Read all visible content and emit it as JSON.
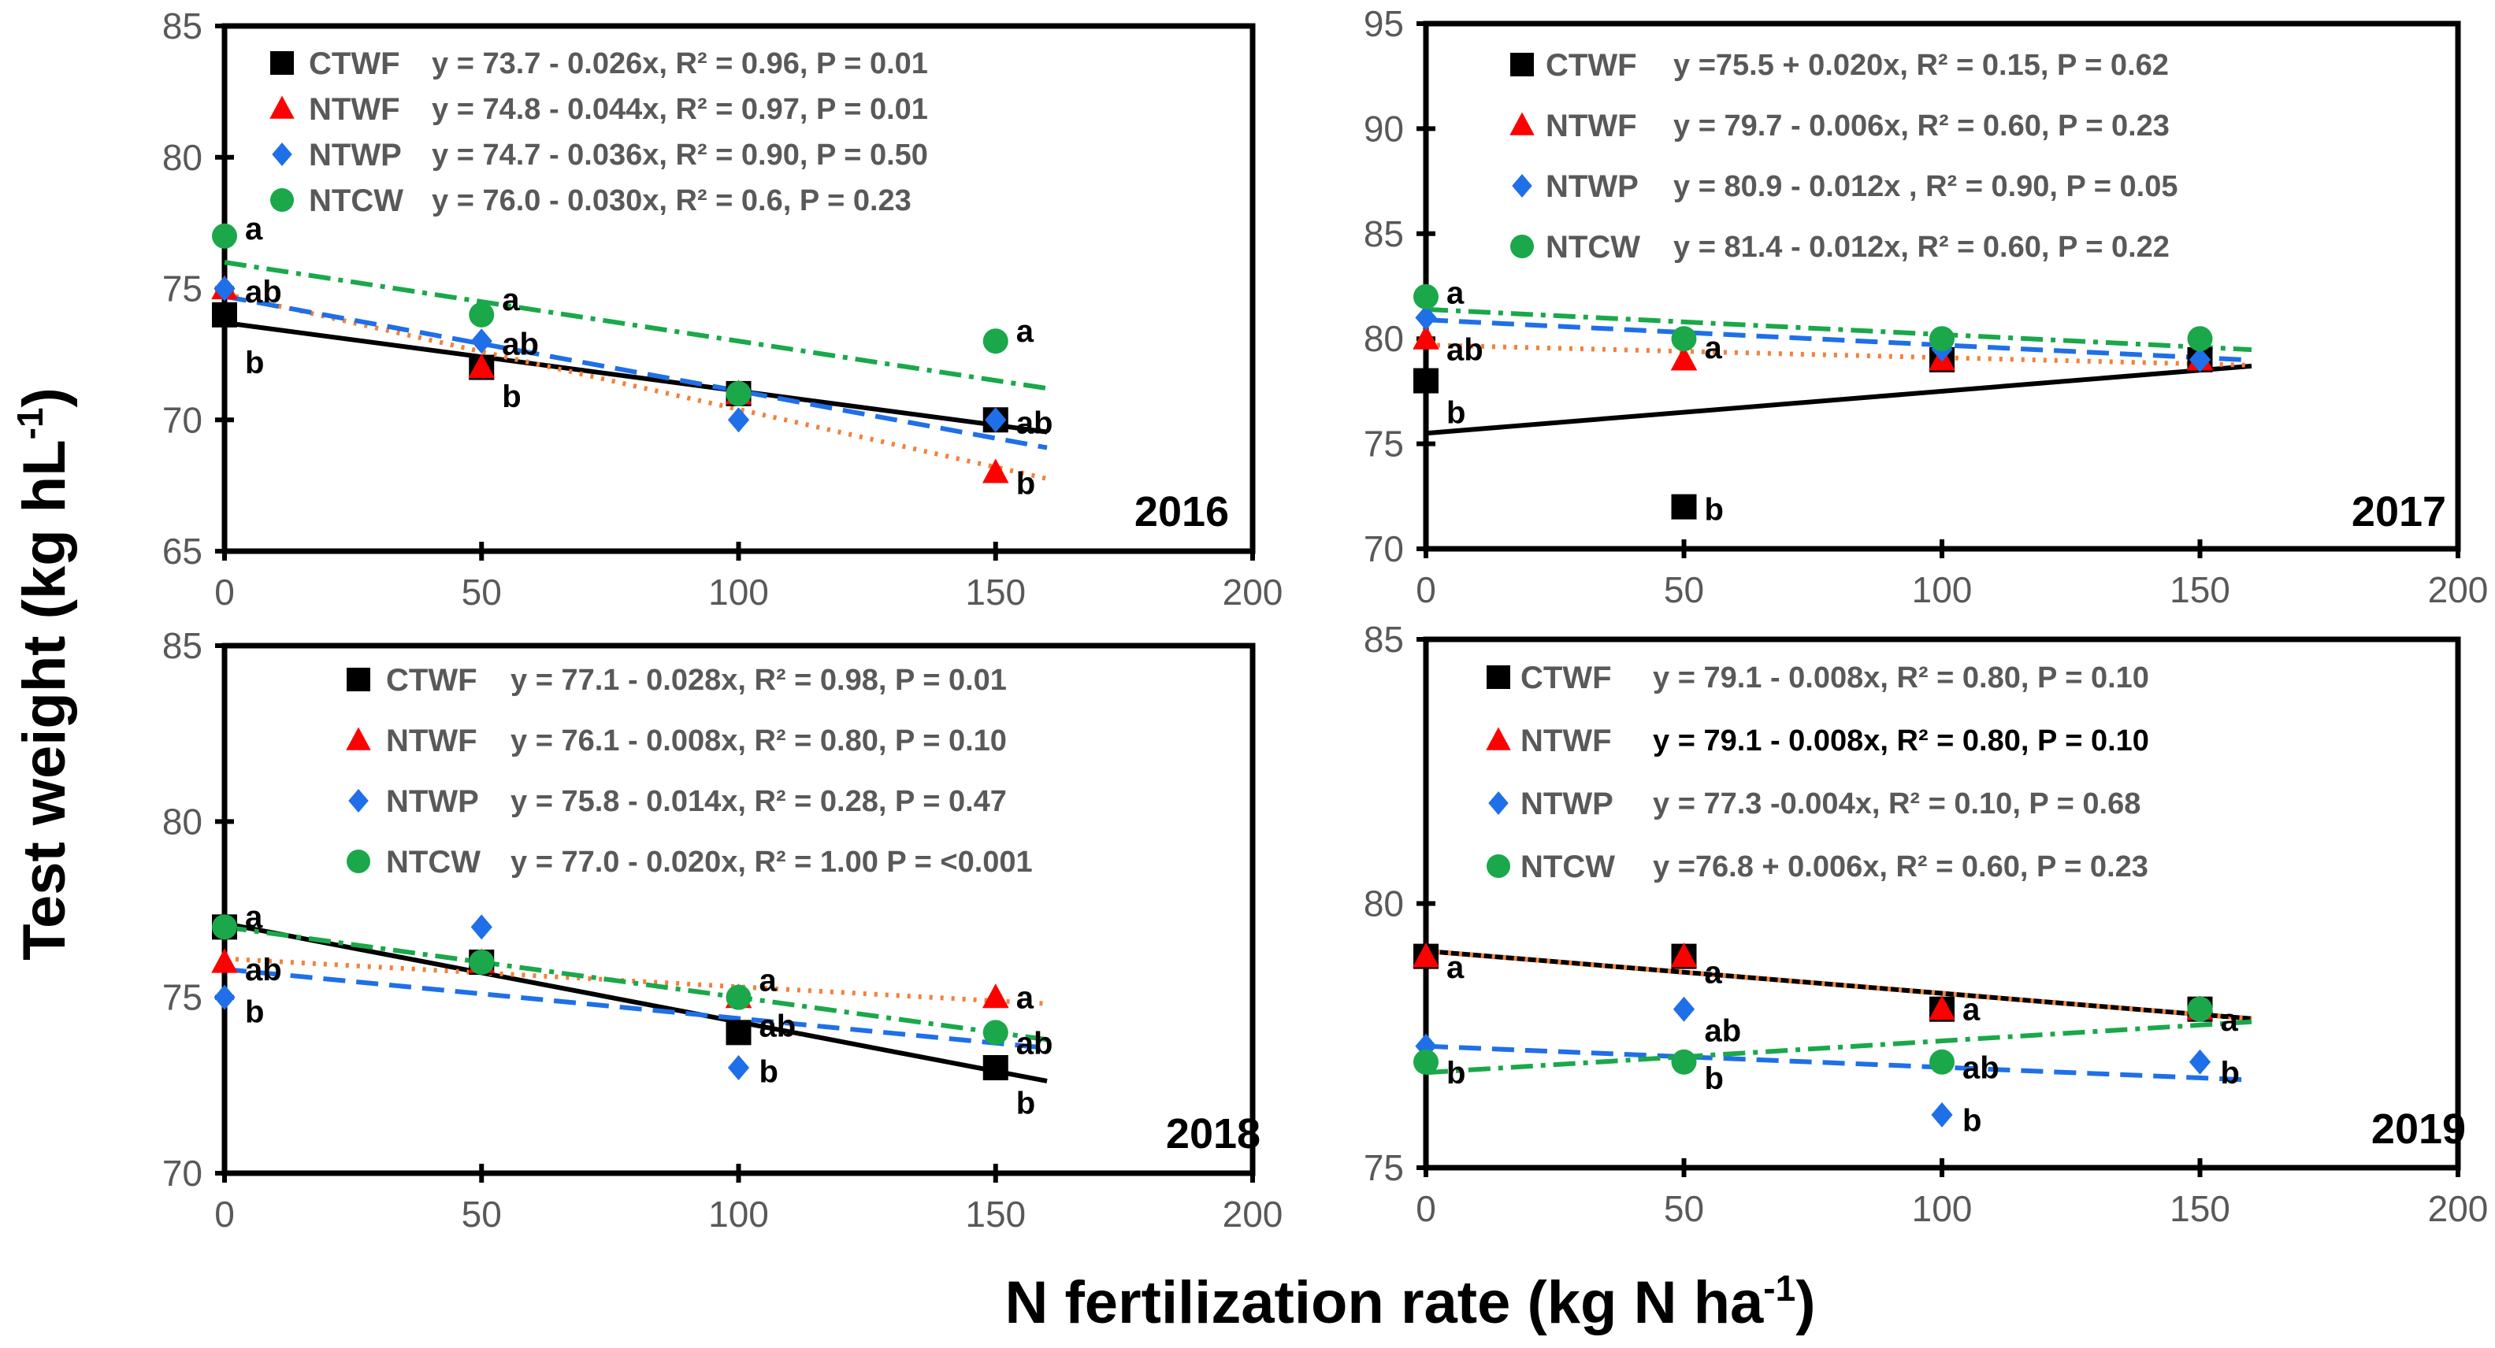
{
  "axis_titles": {
    "ylabel_main": "Test weight (kg hL",
    "ylabel_sup": "-1",
    "ylabel_close": ")",
    "xlabel_main": "N fertilization rate (kg N ha",
    "xlabel_sup": "-1",
    "xlabel_close": ")"
  },
  "colors": {
    "CTWF": "#000000",
    "NTWF": "#ff0000",
    "NTWP": "#1f6fe8",
    "NTCW": "#1aa84a",
    "fit_CTWF": "#000000",
    "fit_NTWF": "#f4803a",
    "fit_NTWP": "#1f6fe8",
    "fit_NTCW": "#1aa84a",
    "tick_text": "#595959"
  },
  "chart_data": [
    {
      "type": "scatter",
      "year": "2016",
      "xlim": [
        0,
        200
      ],
      "ylim": [
        65,
        85
      ],
      "xticks": [
        "0",
        "50",
        "100",
        "150",
        "200"
      ],
      "yticks": [
        "65",
        "70",
        "75",
        "80",
        "85"
      ],
      "x": [
        0,
        50,
        100,
        150
      ],
      "series": [
        {
          "name": "CTWF",
          "marker": "square",
          "values": [
            74,
            72,
            71,
            70
          ],
          "fit": [
            73.7,
            -0.026
          ],
          "equation": "y = 73.7 - 0.026x, R² = 0.96, P = 0.01"
        },
        {
          "name": "NTWF",
          "marker": "triangle",
          "values": [
            75,
            72,
            71,
            68
          ],
          "fit": [
            74.8,
            -0.044
          ],
          "equation": "y = 74.8 - 0.044x, R² = 0.97, P = 0.01"
        },
        {
          "name": "NTWP",
          "marker": "diamond",
          "values": [
            75,
            73,
            70,
            70
          ],
          "fit": [
            74.7,
            -0.036
          ],
          "equation": "y = 74.7 - 0.036x, R² = 0.90, P = 0.50"
        },
        {
          "name": "NTCW",
          "marker": "circle",
          "values": [
            77,
            74,
            71,
            73
          ],
          "fit": [
            76.0,
            -0.03
          ],
          "equation": "y = 76.0 - 0.030x, R² = 0.6, P = 0.23"
        }
      ],
      "annotations": [
        {
          "x": 0,
          "y": 77.3,
          "text": "a"
        },
        {
          "x": 0,
          "y": 74.9,
          "text": "ab"
        },
        {
          "x": 0,
          "y": 72.2,
          "text": "b"
        },
        {
          "x": 50,
          "y": 74.6,
          "text": "a"
        },
        {
          "x": 50,
          "y": 72.9,
          "text": "ab"
        },
        {
          "x": 50,
          "y": 70.9,
          "text": "b"
        },
        {
          "x": 150,
          "y": 73.4,
          "text": "a"
        },
        {
          "x": 150,
          "y": 69.9,
          "text": "ab"
        },
        {
          "x": 150,
          "y": 67.6,
          "text": "b"
        }
      ]
    },
    {
      "type": "scatter",
      "year": "2017",
      "xlim": [
        0,
        200
      ],
      "ylim": [
        70,
        95
      ],
      "xticks": [
        "0",
        "50",
        "100",
        "150",
        "200"
      ],
      "yticks": [
        "70",
        "75",
        "80",
        "85",
        "90",
        "95"
      ],
      "x": [
        0,
        50,
        100,
        150
      ],
      "series": [
        {
          "name": "CTWF",
          "marker": "square",
          "values": [
            78,
            72,
            79,
            79
          ],
          "fit": [
            75.5,
            0.02
          ],
          "equation": "y =75.5 + 0.020x, R² = 0.15, P = 0.62"
        },
        {
          "name": "NTWF",
          "marker": "triangle",
          "values": [
            80,
            79,
            79,
            79
          ],
          "fit": [
            79.7,
            -0.006
          ],
          "equation": "y = 79.7 - 0.006x, R² = 0.60, P = 0.23"
        },
        {
          "name": "NTWP",
          "marker": "diamond",
          "values": [
            81,
            80,
            79.5,
            79
          ],
          "fit": [
            80.9,
            -0.012
          ],
          "equation": "y = 80.9 - 0.012x , R² = 0.90, P = 0.05"
        },
        {
          "name": "NTCW",
          "marker": "circle",
          "values": [
            82,
            80,
            80,
            80
          ],
          "fit": [
            81.4,
            -0.012
          ],
          "equation": "y = 81.4 - 0.012x, R² = 0.60, P = 0.22"
        }
      ],
      "annotations": [
        {
          "x": 0,
          "y": 82.2,
          "text": "a"
        },
        {
          "x": 0,
          "y": 79.5,
          "text": "ab"
        },
        {
          "x": 0,
          "y": 76.5,
          "text": "b"
        },
        {
          "x": 50,
          "y": 79.6,
          "text": "a"
        },
        {
          "x": 50,
          "y": 71.9,
          "text": "b"
        }
      ]
    },
    {
      "type": "scatter",
      "year": "2018",
      "xlim": [
        0,
        200
      ],
      "ylim": [
        70,
        85
      ],
      "xticks": [
        "0",
        "50",
        "100",
        "150",
        "200"
      ],
      "yticks": [
        "70",
        "75",
        "80",
        "85"
      ],
      "x": [
        0,
        50,
        100,
        150
      ],
      "series": [
        {
          "name": "CTWF",
          "marker": "square",
          "values": [
            77,
            76,
            74,
            73
          ],
          "fit": [
            77.1,
            -0.028
          ],
          "equation": "y =  77.1 - 0.028x, R² = 0.98, P = 0.01"
        },
        {
          "name": "NTWF",
          "marker": "triangle",
          "values": [
            76,
            76,
            75,
            75
          ],
          "fit": [
            76.1,
            -0.008
          ],
          "equation": "y = 76.1 - 0.008x, R² = 0.80, P = 0.10"
        },
        {
          "name": "NTWP",
          "marker": "diamond",
          "values": [
            75,
            77,
            73,
            74
          ],
          "fit": [
            75.8,
            -0.014
          ],
          "equation": "y = 75.8 - 0.014x, R² = 0.28, P = 0.47"
        },
        {
          "name": "NTCW",
          "marker": "circle",
          "values": [
            77,
            76,
            75,
            74
          ],
          "fit": [
            77.0,
            -0.02
          ],
          "equation": "y = 77.0 - 0.020x, R² = 1.00 P = <0.001"
        }
      ],
      "annotations": [
        {
          "x": 0,
          "y": 77.3,
          "text": "a"
        },
        {
          "x": 0,
          "y": 75.8,
          "text": "ab"
        },
        {
          "x": 0,
          "y": 74.6,
          "text": "b"
        },
        {
          "x": 100,
          "y": 75.5,
          "text": "a"
        },
        {
          "x": 100,
          "y": 74.2,
          "text": "ab"
        },
        {
          "x": 100,
          "y": 72.9,
          "text": "b"
        },
        {
          "x": 150,
          "y": 75.0,
          "text": "a"
        },
        {
          "x": 150,
          "y": 73.7,
          "text": "ab"
        },
        {
          "x": 150,
          "y": 72.0,
          "text": "b"
        }
      ]
    },
    {
      "type": "scatter",
      "year": "2019",
      "xlim": [
        0,
        200
      ],
      "ylim": [
        75,
        85
      ],
      "xticks": [
        "0",
        "50",
        "100",
        "150",
        "200"
      ],
      "yticks": [
        "75",
        "80",
        "85"
      ],
      "x": [
        0,
        50,
        100,
        150
      ],
      "series": [
        {
          "name": "CTWF",
          "marker": "square",
          "values": [
            79,
            79,
            78,
            78
          ],
          "fit": [
            79.1,
            -0.008
          ],
          "equation": "y = 79.1 - 0.008x, R² = 0.80, P = 0.10"
        },
        {
          "name": "NTWF",
          "marker": "triangle",
          "values": [
            79,
            79,
            78,
            78
          ],
          "fit": [
            79.1,
            -0.008
          ],
          "equation": "y = 79.1 - 0.008x, R² = 0.80, P = 0.10"
        },
        {
          "name": "NTWP",
          "marker": "diamond",
          "values": [
            77.3,
            78,
            76,
            77
          ],
          "fit": [
            77.3,
            -0.004
          ],
          "equation": "y = 77.3 -0.004x, R² = 0.10, P = 0.68"
        },
        {
          "name": "NTCW",
          "marker": "circle",
          "values": [
            77,
            77,
            77,
            78
          ],
          "fit": [
            76.8,
            0.006
          ],
          "equation": "y =76.8 + 0.006x, R² = 0.60, P = 0.23"
        }
      ],
      "annotations": [
        {
          "x": 0,
          "y": 78.8,
          "text": "a"
        },
        {
          "x": 0,
          "y": 76.8,
          "text": "b"
        },
        {
          "x": 50,
          "y": 78.7,
          "text": "a"
        },
        {
          "x": 50,
          "y": 77.6,
          "text": "ab"
        },
        {
          "x": 50,
          "y": 76.7,
          "text": "b"
        },
        {
          "x": 100,
          "y": 78.0,
          "text": "a"
        },
        {
          "x": 100,
          "y": 76.9,
          "text": "ab"
        },
        {
          "x": 100,
          "y": 75.9,
          "text": "b"
        },
        {
          "x": 150,
          "y": 77.8,
          "text": "a"
        },
        {
          "x": 150,
          "y": 76.8,
          "text": "b"
        }
      ]
    }
  ]
}
